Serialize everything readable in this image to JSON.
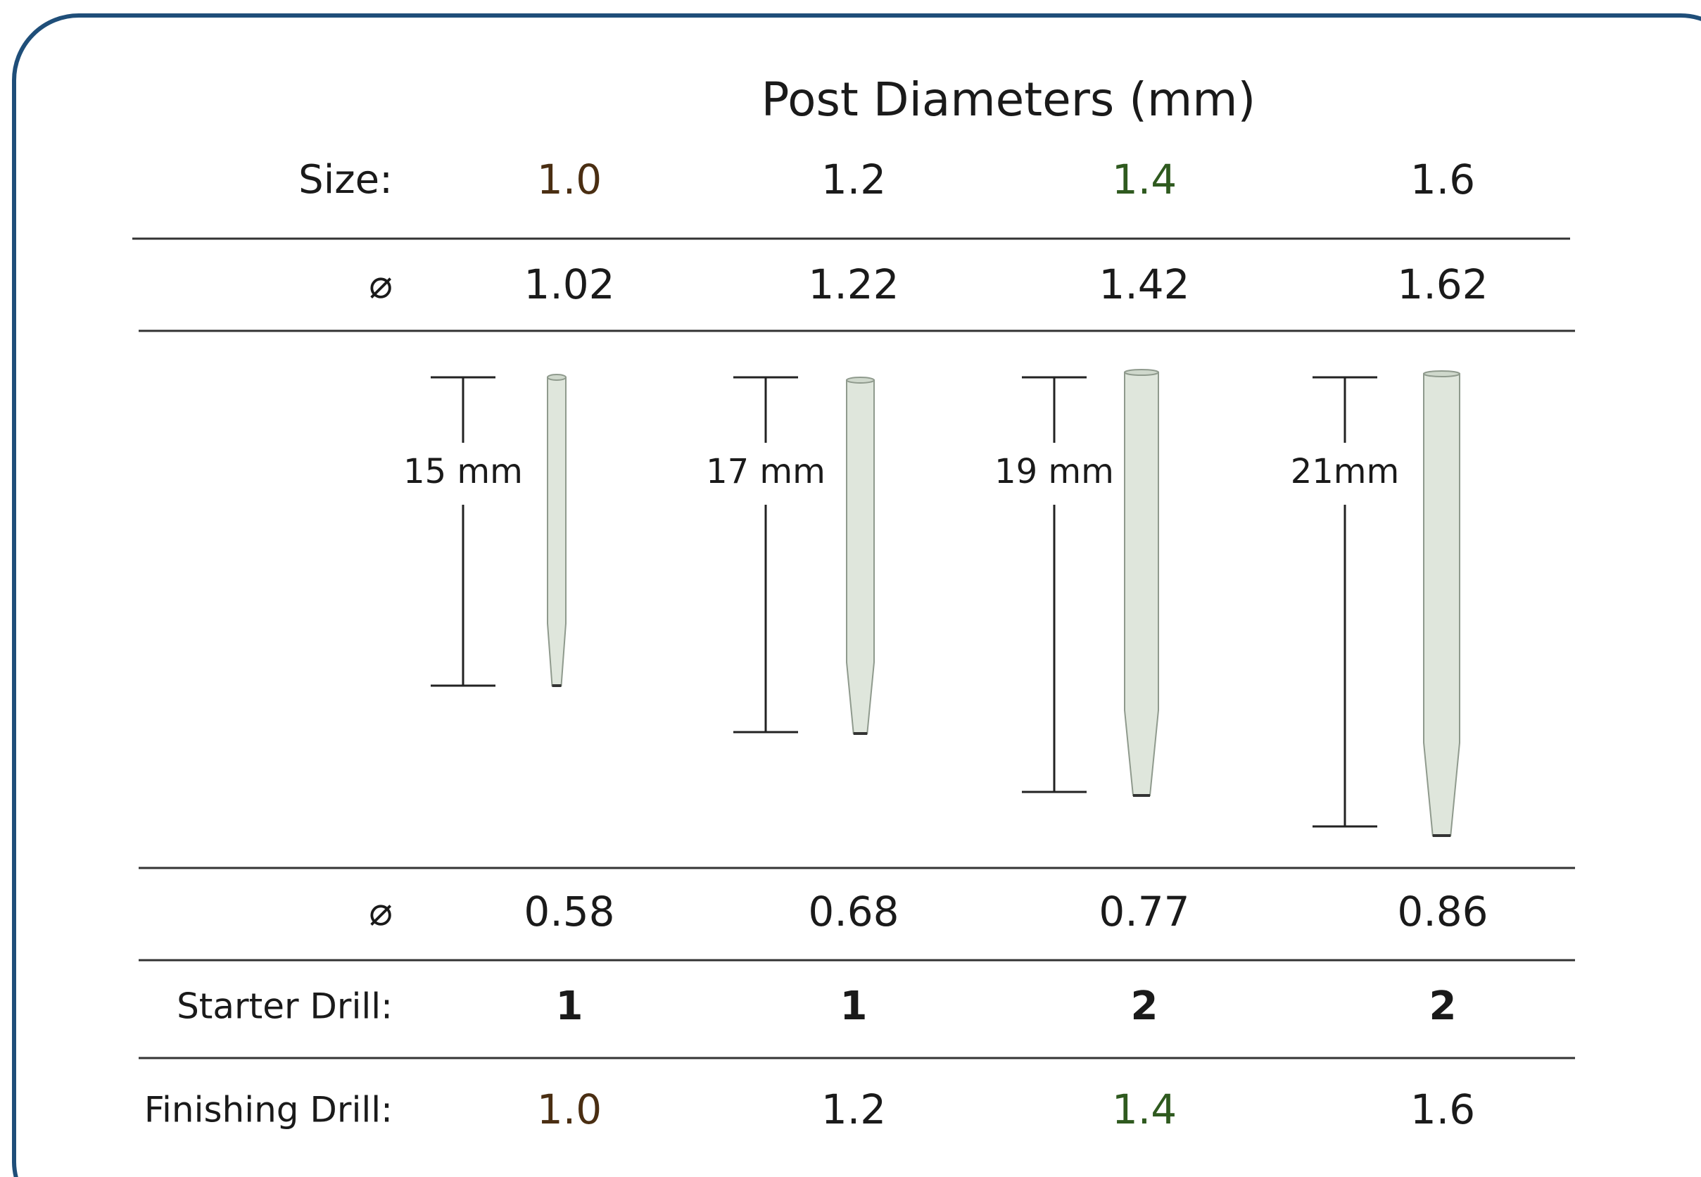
{
  "title": "Post Diameters (mm)",
  "rows": {
    "size": {
      "label": "Size:",
      "values": [
        "1.0",
        "1.2",
        "1.4",
        "1.6"
      ]
    },
    "coronal_diameter": {
      "label": "⌀",
      "values": [
        "1.02",
        "1.22",
        "1.42",
        "1.62"
      ]
    },
    "lengths": [
      "15 mm",
      "17 mm",
      "19 mm",
      "21mm"
    ],
    "apical_diameter": {
      "label": "⌀",
      "values": [
        "0.58",
        "0.68",
        "0.77",
        "0.86"
      ]
    },
    "starter_drill": {
      "label": "Starter Drill:",
      "values": [
        "1",
        "1",
        "2",
        "2"
      ]
    },
    "finishing_drill": {
      "label": "Finishing Drill:",
      "values": [
        "1.0",
        "1.2",
        "1.4",
        "1.6"
      ]
    }
  }
}
